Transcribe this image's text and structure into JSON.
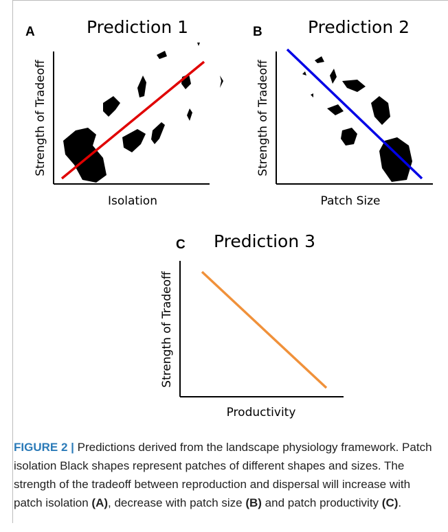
{
  "panels": [
    {
      "letter": "A",
      "title": "Prediction 1",
      "x_label": "Isolation",
      "y_label": "Strength of Tradeoff"
    },
    {
      "letter": "B",
      "title": "Prediction 2",
      "x_label": "Patch Size",
      "y_label": "Strength of Tradeoff"
    },
    {
      "letter": "C",
      "title": "Prediction 3",
      "x_label": "Productivity",
      "y_label": "Strength of Tradeoff"
    }
  ],
  "caption": {
    "label": "FIGURE 2 |",
    "text": " Predictions derived from the landscape physiology framework. Patch isolation Black shapes represent patches of different shapes and sizes. The strength of the tradeoff between reproduction and dispersal will increase with patch isolation ",
    "ref_a": "(A)",
    "text_2": ", decrease with patch size ",
    "ref_b": "(B)",
    "text_3": " and patch productivity ",
    "ref_c": "(C)",
    "text_4": "."
  }
}
